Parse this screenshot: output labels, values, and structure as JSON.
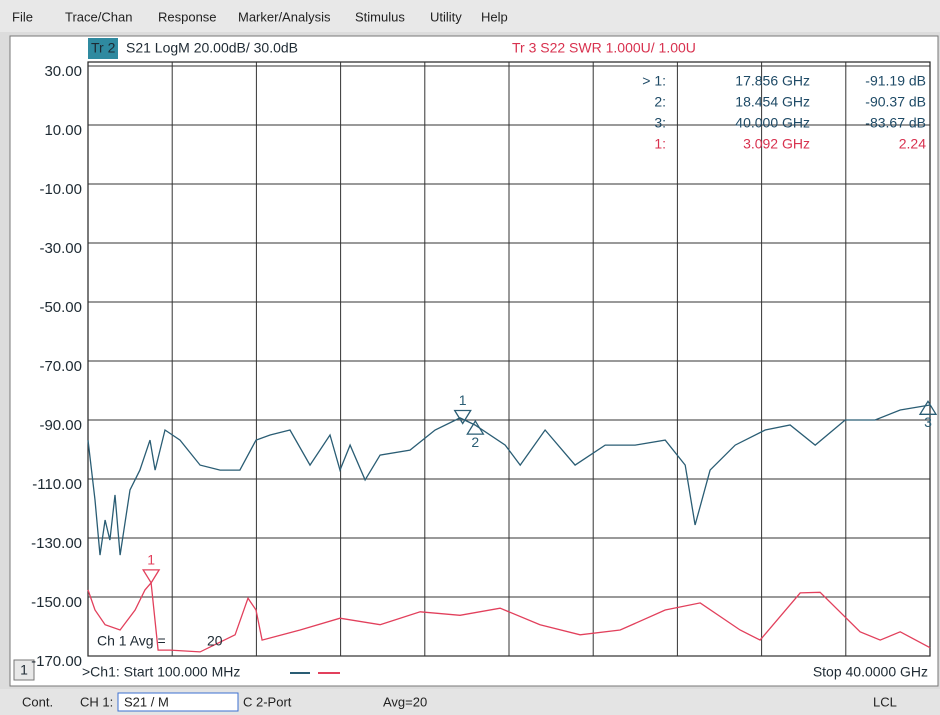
{
  "menu": [
    "File",
    "Trace/Chan",
    "Response",
    "Marker/Analysis",
    "Stimulus",
    "Utility",
    "Help"
  ],
  "header": {
    "trace2_tag": "Tr 2",
    "trace2_label": "S21 LogM 20.00dB/ 30.0dB",
    "trace3_label": "Tr 3  S22 SWR 1.000U/ 1.00U"
  },
  "marker_table": {
    "s21": [
      {
        "id": "> 1:",
        "tag": "1",
        "freq": {
          "value": 17.856,
          "label": "17.856 GHz"
        },
        "response": {
          "value": -91.19,
          "label": "-91.19 dB"
        }
      },
      {
        "id": "2:",
        "tag": "2",
        "freq": {
          "value": 18.454,
          "label": "18.454 GHz"
        },
        "response": {
          "value": -90.37,
          "label": "-90.37 dB"
        }
      },
      {
        "id": "3:",
        "tag": "3",
        "freq": {
          "value": 40.0,
          "label": "40.000 GHz"
        },
        "response": {
          "value": -83.67,
          "label": "-83.67 dB"
        }
      }
    ],
    "s22": [
      {
        "id": "1:",
        "tag": "1",
        "freq": {
          "value": 3.092,
          "label": "3.092 GHz"
        },
        "response": 2.24
      }
    ]
  },
  "chart_data": {
    "type": "line",
    "xlim": [
      0.1,
      40
    ],
    "ylim": [
      -170,
      30
    ],
    "yticks": [
      {
        "value": 30,
        "label": "30.00"
      },
      {
        "value": 10,
        "label": "10.00"
      },
      {
        "value": -10,
        "label": "-10.00"
      },
      {
        "value": -30,
        "label": "-30.00"
      },
      {
        "value": -50,
        "label": "-50.00"
      },
      {
        "value": -70,
        "label": "-70.00"
      },
      {
        "value": -90,
        "label": "-90.00"
      },
      {
        "value": -110,
        "label": "-110.00"
      },
      {
        "value": -130,
        "label": "-130.00"
      },
      {
        "value": -150,
        "label": "-150.00"
      },
      {
        "value": -170,
        "label": "-170.00"
      }
    ],
    "y2lim": [
      1,
      11
    ],
    "grid": true,
    "series": [
      {
        "color": "#2a5d74",
        "x": [
          0.1,
          0.43,
          0.67,
          0.91,
          1.14,
          1.38,
          1.62,
          2.09,
          2.56,
          3.04,
          3.28,
          3.75,
          4.46,
          5.41,
          6.36,
          7.3,
          8.06,
          8.73,
          9.67,
          10.62,
          11.57,
          12.04,
          12.52,
          13.23,
          13.94,
          15.36,
          16.55,
          17.73,
          18.44,
          19.87,
          20.58,
          21.76,
          23.18,
          24.61,
          26.03,
          27.45,
          28.4,
          28.87,
          29.58,
          30.77,
          32.19,
          33.37,
          34.56,
          35.98,
          37.4,
          38.59,
          40
        ],
        "values": [
          -96.8,
          -117.1,
          -135.8,
          -123.9,
          -130.7,
          -115.4,
          -135.8,
          -113.7,
          -107,
          -96.8,
          -107,
          -93.4,
          -96.8,
          -105.3,
          -107,
          -107,
          -96.8,
          -95.1,
          -93.4,
          -105.3,
          -95.1,
          -107,
          -98.5,
          -110.3,
          -101.9,
          -100.2,
          -93.4,
          -89.3,
          -91.7,
          -98.5,
          -105.3,
          -93.4,
          -105.3,
          -98.5,
          -98.5,
          -96.8,
          -105.3,
          -125.6,
          -107,
          -98.5,
          -93.4,
          -91.7,
          -98.5,
          -90,
          -90,
          -86.6,
          -84.9
        ]
      },
      {
        "color": "#e2405c",
        "axis": "y2",
        "x": [
          0.1,
          0.43,
          0.91,
          1.62,
          2.33,
          2.8,
          3.09,
          3.42,
          3.99,
          5.41,
          7.07,
          7.68,
          8.06,
          8.35,
          10.15,
          12.04,
          13.94,
          15.84,
          17.73,
          19.63,
          21.52,
          23.42,
          25.32,
          27.45,
          29.11,
          31,
          31.95,
          33.85,
          34.79,
          36.69,
          37.64,
          38.59,
          40
        ],
        "values": [
          2.12,
          1.78,
          1.53,
          1.44,
          1.78,
          2.12,
          2.24,
          1.1,
          1.1,
          1.07,
          1.36,
          1.98,
          1.78,
          1.27,
          1.44,
          1.64,
          1.53,
          1.75,
          1.69,
          1.81,
          1.53,
          1.36,
          1.44,
          1.78,
          1.9,
          1.44,
          1.27,
          2.07,
          2.08,
          1.41,
          1.27,
          1.41,
          1.14
        ]
      }
    ]
  },
  "footer": {
    "avg_label": "Ch 1 Avg =",
    "avg_value": 20,
    "channel_box": "1",
    "start": ">Ch1: Start 100.000 MHz",
    "stop": "Stop 40.0000 GHz"
  },
  "status": {
    "mode": "Cont.",
    "ch": "CH 1:",
    "meas": "S21 / M",
    "cal": "C 2-Port",
    "avg": "Avg=20",
    "lcl": "LCL"
  }
}
